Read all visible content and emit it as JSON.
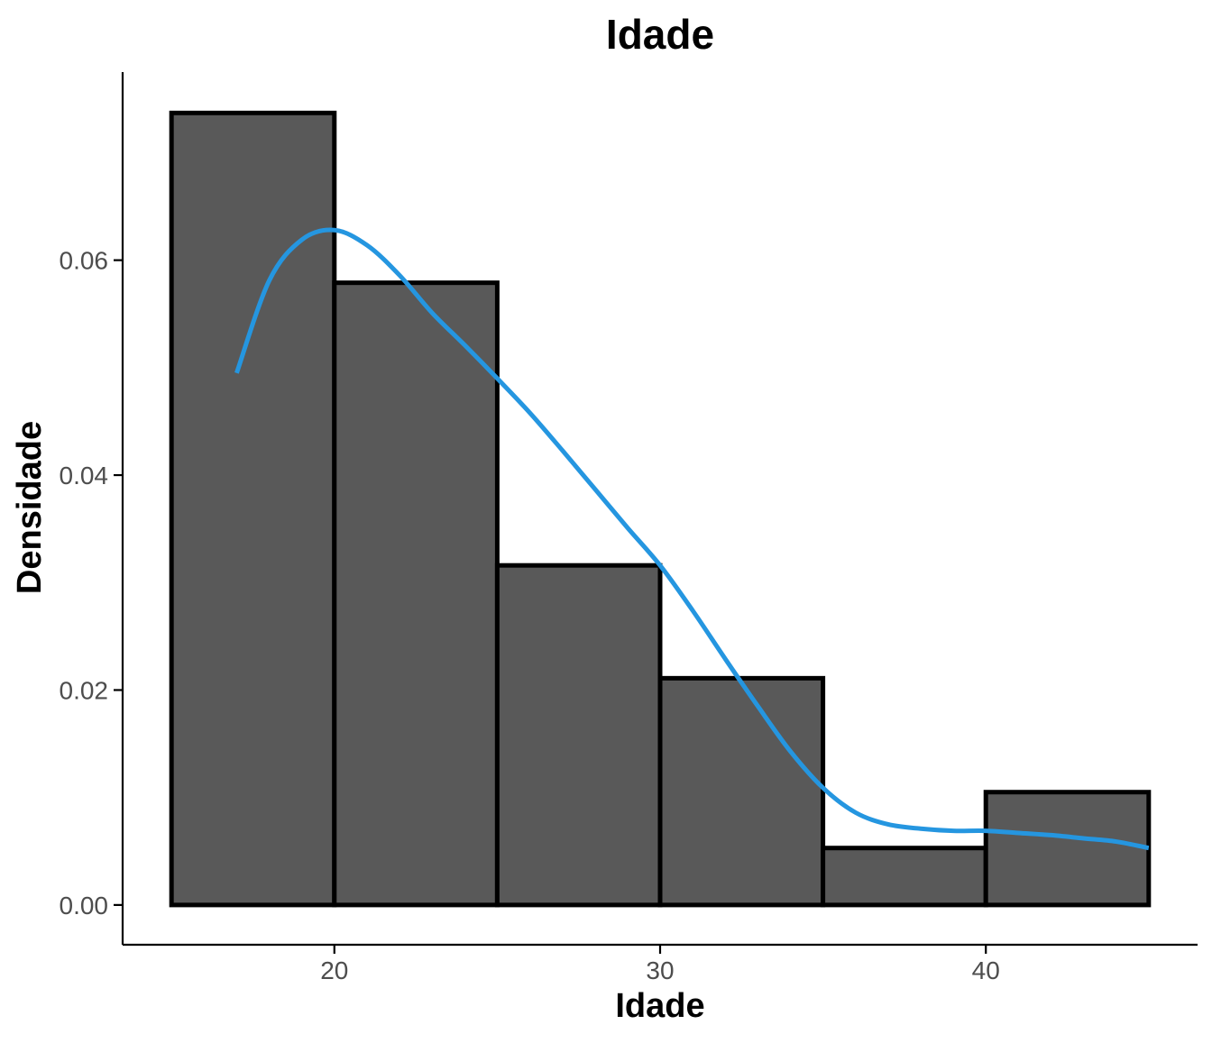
{
  "chart_data": {
    "type": "bar",
    "title": "Idade",
    "xlabel": "Idade",
    "ylabel": "Densidade",
    "xlim": [
      13.5,
      46.5
    ],
    "ylim": [
      -0.0037,
      0.0775
    ],
    "x_ticks": [
      20,
      30,
      40
    ],
    "x_tick_labels": [
      "20",
      "30",
      "40"
    ],
    "y_ticks": [
      0.0,
      0.02,
      0.04,
      0.06
    ],
    "y_tick_labels": [
      "0.00",
      "0.02",
      "0.04",
      "0.06"
    ],
    "grid": false,
    "legend": "none",
    "bins": [
      {
        "start": 15,
        "end": 20,
        "density": 0.0737
      },
      {
        "start": 20,
        "end": 25,
        "density": 0.0579
      },
      {
        "start": 25,
        "end": 30,
        "density": 0.0316
      },
      {
        "start": 30,
        "end": 35,
        "density": 0.0211
      },
      {
        "start": 35,
        "end": 40,
        "density": 0.0053
      },
      {
        "start": 40,
        "end": 45,
        "density": 0.0105
      }
    ],
    "density_curve": {
      "x": [
        17.0,
        18.0,
        19.0,
        20.0,
        21.0,
        22.0,
        23.0,
        24.0,
        25.0,
        26.0,
        27.0,
        28.0,
        29.0,
        30.0,
        31.0,
        32.0,
        33.0,
        34.0,
        35.0,
        36.0,
        37.0,
        38.0,
        39.0,
        40.0,
        41.0,
        42.0,
        43.0,
        44.0,
        45.0
      ],
      "y": [
        0.0495,
        0.0581,
        0.0619,
        0.0628,
        0.0614,
        0.0586,
        0.0551,
        0.0521,
        0.049,
        0.0458,
        0.0423,
        0.0387,
        0.0351,
        0.0316,
        0.0274,
        0.0229,
        0.0185,
        0.0143,
        0.0109,
        0.0086,
        0.0075,
        0.0071,
        0.0069,
        0.0069,
        0.0067,
        0.0065,
        0.0062,
        0.0059,
        0.0053
      ]
    },
    "colors": {
      "bar_fill": "#595959",
      "bar_outline": "#000000",
      "density_line": "#2596e0",
      "tick_label": "#4d4d4d"
    }
  }
}
